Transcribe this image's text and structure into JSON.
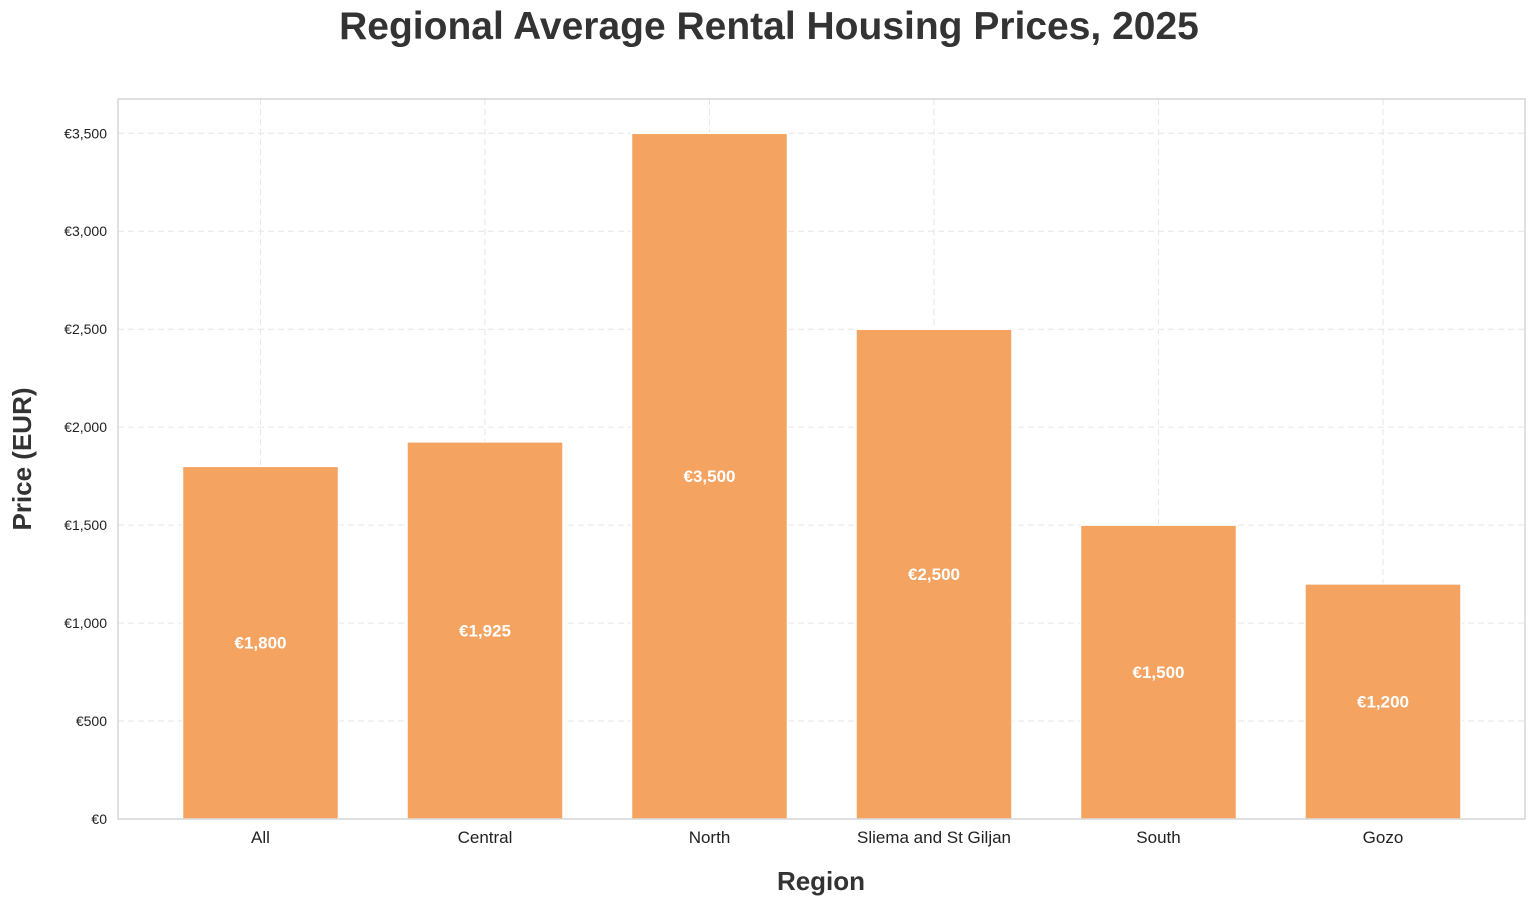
{
  "chart_data": {
    "type": "bar",
    "title": "Regional Average Rental Housing Prices, 2025",
    "xlabel": "Region",
    "ylabel": "Price (EUR)",
    "categories": [
      "All",
      "Central",
      "North",
      "Sliema and St Giljan",
      "South",
      "Gozo"
    ],
    "values": [
      1800,
      1925,
      3500,
      2500,
      1500,
      1200
    ],
    "value_labels": [
      "€1,800",
      "€1,925",
      "€3,500",
      "€2,500",
      "€1,500",
      "€1,200"
    ],
    "ylim": [
      0,
      3675
    ],
    "yticks": [
      0,
      500,
      1000,
      1500,
      2000,
      2500,
      3000,
      3500
    ],
    "ytick_labels": [
      "€0",
      "€500",
      "€1,000",
      "€1,500",
      "€2,000",
      "€2,500",
      "€3,000",
      "€3,500"
    ],
    "grid": true,
    "legend": "none",
    "bar_color": "#F4A361"
  }
}
